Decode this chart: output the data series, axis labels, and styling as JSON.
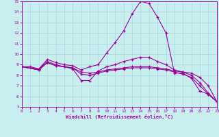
{
  "xlabel": "Windchill (Refroidissement éolien,°C)",
  "xlim": [
    0,
    23
  ],
  "ylim": [
    5,
    15
  ],
  "xticks": [
    0,
    1,
    2,
    3,
    4,
    5,
    6,
    7,
    8,
    9,
    10,
    11,
    12,
    13,
    14,
    15,
    16,
    17,
    18,
    19,
    20,
    21,
    22,
    23
  ],
  "yticks": [
    5,
    6,
    7,
    8,
    9,
    10,
    11,
    12,
    13,
    14,
    15
  ],
  "background_color": "#c8eef0",
  "line_color": "#990099",
  "grid_color": "#a8d8da",
  "curve1_x": [
    0,
    1,
    2,
    3,
    4,
    5,
    6,
    7,
    8,
    9,
    10,
    11,
    12,
    13,
    14,
    15,
    16,
    17,
    18,
    19,
    20,
    21,
    22,
    23
  ],
  "curve1_y": [
    8.8,
    8.8,
    8.6,
    9.5,
    9.2,
    9.0,
    8.9,
    8.5,
    8.8,
    9.0,
    10.1,
    11.1,
    12.2,
    13.8,
    15.0,
    14.8,
    13.5,
    12.0,
    8.2,
    8.2,
    7.7,
    6.5,
    6.2,
    5.5
  ],
  "curve2_x": [
    0,
    2,
    3,
    4,
    5,
    6,
    7,
    8,
    9,
    10,
    11,
    12,
    13,
    14,
    15,
    16,
    17,
    18,
    19,
    20,
    21,
    22,
    23
  ],
  "curve2_y": [
    8.8,
    8.6,
    9.3,
    9.0,
    8.8,
    8.6,
    7.5,
    7.5,
    8.4,
    8.8,
    9.0,
    9.3,
    9.5,
    9.7,
    9.7,
    9.3,
    9.0,
    8.5,
    8.3,
    8.2,
    7.8,
    7.0,
    5.5
  ],
  "curve3_x": [
    0,
    2,
    3,
    4,
    5,
    6,
    7,
    8,
    9,
    10,
    11,
    12,
    13,
    14,
    15,
    16,
    17,
    18,
    19,
    20,
    21,
    22,
    23
  ],
  "curve3_y": [
    8.8,
    8.5,
    9.2,
    8.9,
    8.8,
    8.7,
    8.3,
    8.2,
    8.3,
    8.5,
    8.6,
    8.7,
    8.8,
    8.8,
    8.8,
    8.7,
    8.6,
    8.4,
    8.3,
    8.0,
    7.3,
    6.3,
    5.5
  ],
  "curve4_x": [
    0,
    2,
    3,
    4,
    5,
    6,
    7,
    8,
    9,
    10,
    11,
    12,
    13,
    14,
    15,
    16,
    17,
    18,
    19,
    20,
    21,
    22,
    23
  ],
  "curve4_y": [
    8.8,
    8.5,
    9.2,
    8.9,
    8.8,
    8.7,
    8.1,
    8.0,
    8.2,
    8.4,
    8.5,
    8.6,
    8.7,
    8.7,
    8.7,
    8.6,
    8.5,
    8.3,
    8.1,
    7.8,
    7.0,
    6.2,
    5.5
  ]
}
